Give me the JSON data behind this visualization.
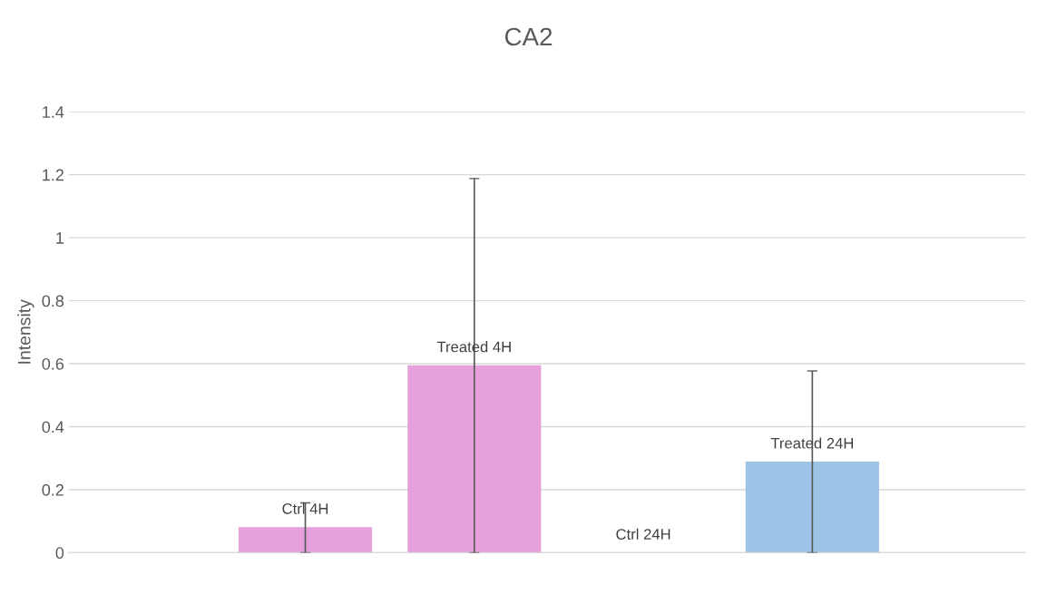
{
  "chart_data": {
    "type": "bar",
    "title": "CA2",
    "ylabel": "Intensity",
    "categories": [
      "Ctrl 4H",
      "Treated 4H",
      "Ctrl 24H",
      "Treated 24H"
    ],
    "values": [
      0.081,
      0.595,
      0,
      0.289
    ],
    "colors": [
      "#e6a0dc",
      "#e6a0dc",
      "#9dc3e6",
      "#9dc3e6"
    ],
    "errors": [
      [
        0,
        0.158
      ],
      [
        0,
        1.188
      ],
      null,
      [
        0,
        0.577
      ]
    ],
    "ylim": [
      0,
      1.4
    ],
    "yticks": [
      0,
      0.2,
      0.4,
      0.6,
      0.8,
      1,
      1.2,
      1.4
    ],
    "grid": "y",
    "legend": false
  }
}
